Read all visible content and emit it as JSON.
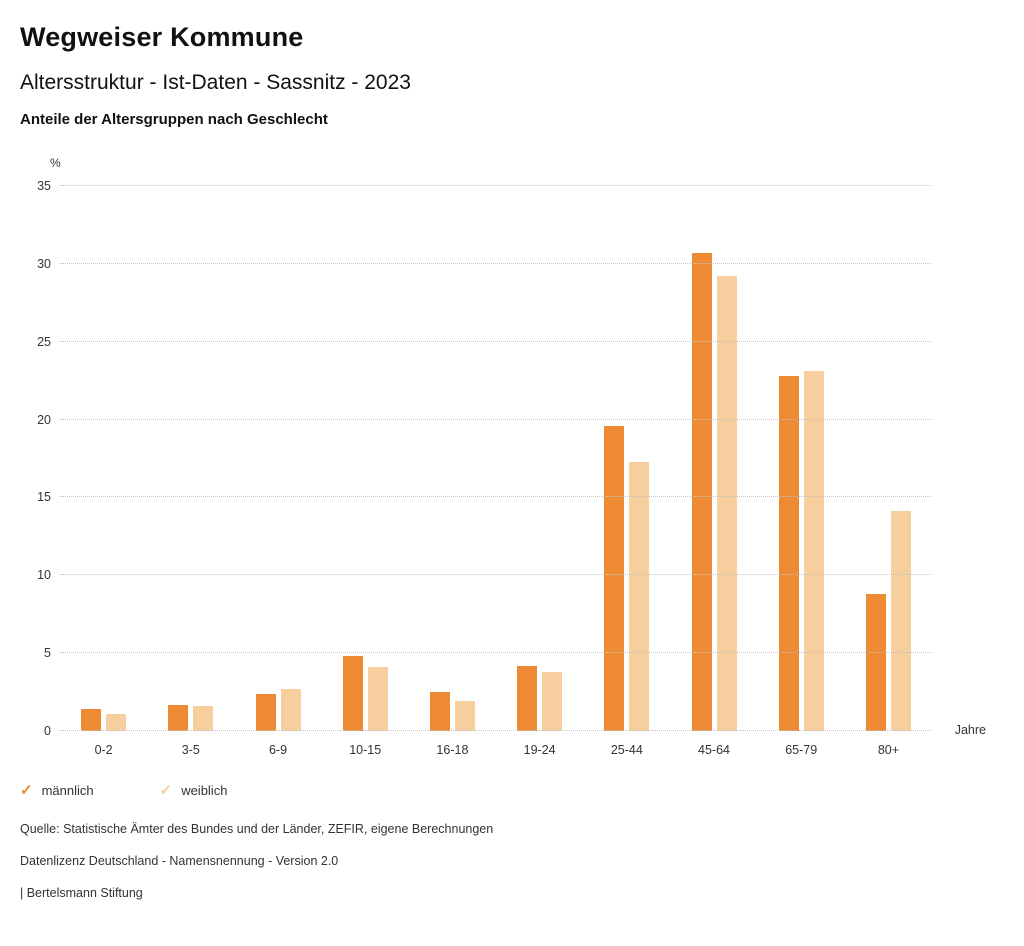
{
  "header": {
    "title": "Wegweiser Kommune",
    "subtitle": "Altersstruktur - Ist-Daten - Sassnitz - 2023",
    "section_title": "Anteile der Altersgruppen nach Geschlecht"
  },
  "chart_data": {
    "type": "bar",
    "categories": [
      "0-2",
      "3-5",
      "6-9",
      "10-15",
      "16-18",
      "19-24",
      "25-44",
      "45-64",
      "65-79",
      "80+"
    ],
    "series": [
      {
        "name": "männlich",
        "color": "#ED8A33",
        "values": [
          1.4,
          1.7,
          2.4,
          4.8,
          2.5,
          4.2,
          19.6,
          30.7,
          22.8,
          8.8
        ]
      },
      {
        "name": "weiblich",
        "color": "#F7CF9E",
        "values": [
          1.1,
          1.6,
          2.7,
          4.1,
          1.9,
          3.8,
          17.3,
          29.2,
          23.1,
          14.1
        ]
      }
    ],
    "title": "Anteile der Altersgruppen nach Geschlecht",
    "xlabel": "Jahre",
    "ylabel": "%",
    "ylim": [
      0,
      35
    ],
    "yticks": [
      0,
      5,
      10,
      15,
      20,
      25,
      30,
      35
    ],
    "grid": true,
    "legend_position": "bottom-left"
  },
  "legend": {
    "check_icon": "✓",
    "items": [
      {
        "label": "männlich",
        "color": "#ED8A33"
      },
      {
        "label": "weiblich",
        "color": "#F7CF9E"
      }
    ]
  },
  "footer": {
    "lines": [
      "Quelle: Statistische Ämter des Bundes und der Länder, ZEFIR, eigene Berechnungen",
      "Datenlizenz Deutschland - Namensnennung - Version 2.0",
      "| Bertelsmann Stiftung"
    ]
  }
}
